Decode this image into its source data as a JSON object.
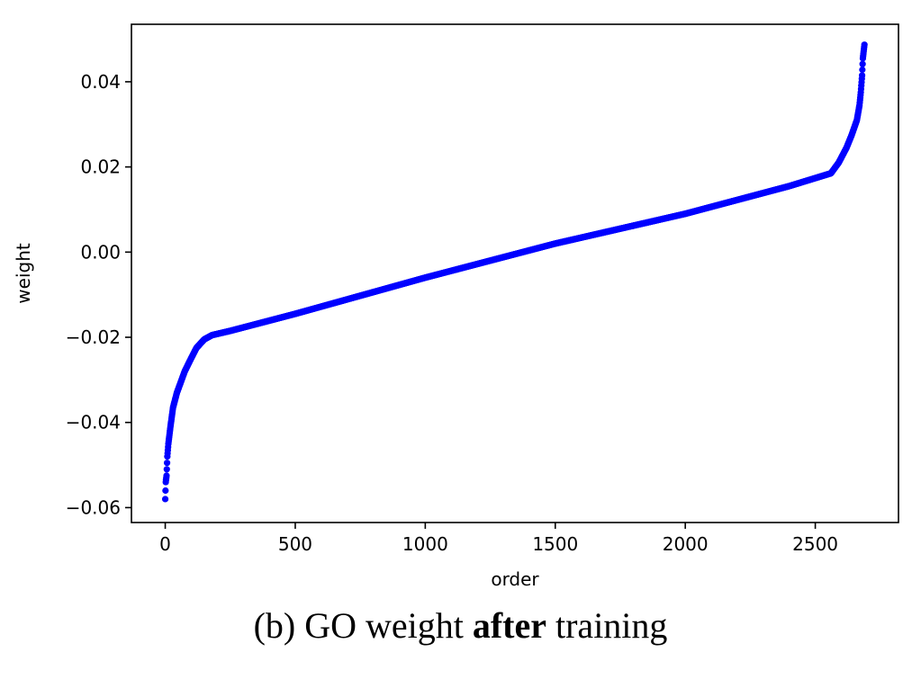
{
  "caption": {
    "prefix": "(b) GO weight ",
    "bold": "after",
    "suffix": " training"
  },
  "chart_data": {
    "type": "scatter",
    "xlabel": "order",
    "ylabel": "weight",
    "xlim": [
      -130,
      2820
    ],
    "ylim": [
      -0.0635,
      0.0535
    ],
    "xticks": [
      0,
      500,
      1000,
      1500,
      2000,
      2500
    ],
    "xtick_labels": [
      "0",
      "500",
      "1000",
      "1500",
      "2000",
      "2500"
    ],
    "yticks": [
      -0.06,
      -0.04,
      -0.02,
      0.0,
      0.02,
      0.04
    ],
    "ytick_labels": [
      "−0.06",
      "−0.04",
      "−0.02",
      "0.00",
      "0.02",
      "0.04"
    ],
    "grid": false,
    "legend": "none",
    "n_points": 2690,
    "marker_color": "#0000ff",
    "curve_x": [
      0,
      2,
      5,
      8,
      12,
      20,
      30,
      45,
      60,
      75,
      95,
      120,
      150,
      180,
      250,
      500,
      1000,
      1500,
      2000,
      2400,
      2560,
      2590,
      2620,
      2640,
      2660,
      2670,
      2675,
      2680,
      2683,
      2689
    ],
    "curve_y": [
      -0.058,
      -0.054,
      -0.0525,
      -0.048,
      -0.045,
      -0.041,
      -0.0365,
      -0.033,
      -0.0305,
      -0.028,
      -0.0255,
      -0.0225,
      -0.0205,
      -0.0195,
      -0.0185,
      -0.0145,
      -0.006,
      0.002,
      0.009,
      0.0155,
      0.0185,
      0.021,
      0.0245,
      0.0275,
      0.031,
      0.0345,
      0.0375,
      0.0415,
      0.0455,
      0.0487
    ]
  }
}
